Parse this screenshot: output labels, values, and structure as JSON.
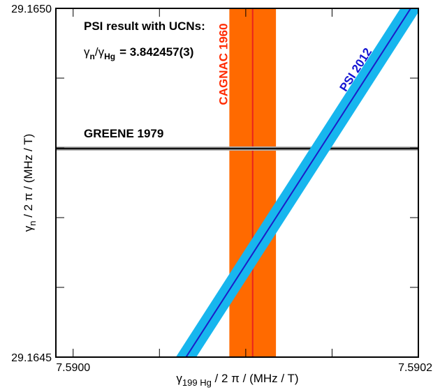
{
  "chart_data": {
    "type": "line",
    "title": "",
    "xlabel": {
      "prefix": "γ",
      "sub": "199 Hg",
      "suffix": " / 2 π / (MHz / T)"
    },
    "ylabel": {
      "prefix": "γ",
      "sub": "n",
      "suffix": " / 2 π / (MHz / T)"
    },
    "xlim": [
      7.58999,
      7.5902
    ],
    "ylim": [
      29.1645,
      29.165
    ],
    "x_ticks": [
      7.59,
      7.59005,
      7.5901,
      7.59015,
      7.5902
    ],
    "x_tick_labels": [
      "7.5900",
      "",
      "",
      "",
      "7.5902"
    ],
    "y_ticks": [
      29.1645,
      29.1646,
      29.1647,
      29.1648,
      29.1649,
      29.165
    ],
    "y_tick_labels": [
      "29.1645",
      "",
      "",
      "",
      "",
      "29.1650"
    ],
    "grid": false,
    "series": [
      {
        "name": "CAGNAC 1960",
        "orientation": "vertical",
        "center_x": 7.590104,
        "half_width_x": 1.35e-05,
        "band_color": "#ff6a00",
        "line_color": "#e8231e",
        "label_color": "#ff2a00"
      },
      {
        "name": "GREENE 1979",
        "orientation": "horizontal",
        "center_y": 29.164799,
        "half_width_y": 3e-06,
        "band_color": "#b4b4b4",
        "line_color": "#111111",
        "label_color": "#000000"
      },
      {
        "name": "PSI 2012",
        "orientation": "slope",
        "ratio": 3.842457,
        "ratio_uncertainty": 3e-06,
        "band_color": "#17b6ee",
        "line_color": "#1c1cc8",
        "label_color": "#1414d2"
      }
    ],
    "annotations": {
      "heading": "PSI result with UCNs:",
      "ratio_num": "γ",
      "ratio_num_sub": "n",
      "ratio_sep": "/γ",
      "ratio_den_sub": "Hg",
      "ratio_value": "=  3.842457(3)"
    }
  }
}
